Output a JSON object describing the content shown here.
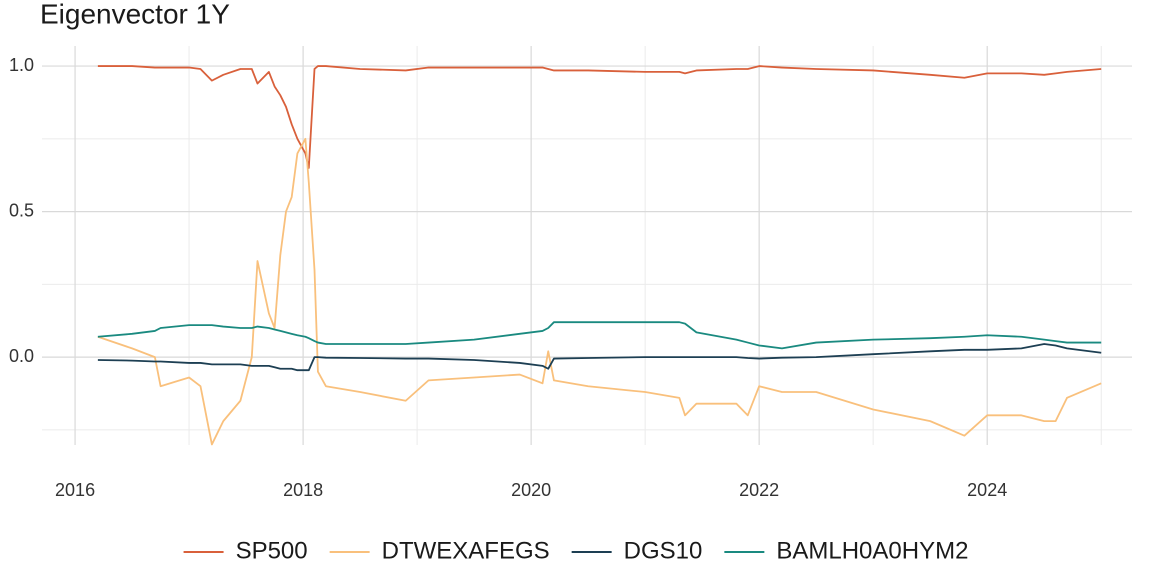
{
  "chart_data": {
    "type": "line",
    "title": "Eigenvector 1Y",
    "x": [
      2016.2,
      2016.5,
      2016.7,
      2016.75,
      2017.0,
      2017.1,
      2017.2,
      2017.3,
      2017.45,
      2017.55,
      2017.6,
      2017.7,
      2017.75,
      2017.8,
      2017.85,
      2017.9,
      2017.95,
      2018.02,
      2018.05,
      2018.1,
      2018.13,
      2018.2,
      2018.5,
      2018.9,
      2019.1,
      2019.5,
      2019.9,
      2020.1,
      2020.15,
      2020.2,
      2020.5,
      2021.0,
      2021.3,
      2021.35,
      2021.45,
      2021.8,
      2021.9,
      2022.0,
      2022.2,
      2022.5,
      2023.0,
      2023.5,
      2023.8,
      2024.0,
      2024.3,
      2024.5,
      2024.6,
      2024.7,
      2025.0
    ],
    "series": [
      {
        "name": "SP500",
        "color": "#d9603b",
        "values": [
          1.0,
          1.0,
          0.995,
          0.995,
          0.995,
          0.99,
          0.95,
          0.97,
          0.99,
          0.99,
          0.94,
          0.98,
          0.93,
          0.9,
          0.86,
          0.8,
          0.75,
          0.7,
          0.65,
          0.99,
          1.0,
          1.0,
          0.99,
          0.985,
          0.995,
          0.995,
          0.995,
          0.995,
          0.99,
          0.985,
          0.985,
          0.98,
          0.98,
          0.975,
          0.985,
          0.99,
          0.99,
          1.0,
          0.995,
          0.99,
          0.985,
          0.97,
          0.96,
          0.975,
          0.975,
          0.97,
          0.975,
          0.98,
          0.99
        ]
      },
      {
        "name": "DTWEXAFEGS",
        "color": "#f9c07c",
        "values": [
          0.07,
          0.03,
          0.0,
          -0.1,
          -0.07,
          -0.1,
          -0.3,
          -0.22,
          -0.15,
          0.0,
          0.33,
          0.15,
          0.1,
          0.35,
          0.5,
          0.55,
          0.7,
          0.75,
          0.6,
          0.3,
          -0.05,
          -0.1,
          -0.12,
          -0.15,
          -0.08,
          -0.07,
          -0.06,
          -0.09,
          0.02,
          -0.08,
          -0.1,
          -0.12,
          -0.14,
          -0.2,
          -0.16,
          -0.16,
          -0.2,
          -0.1,
          -0.12,
          -0.12,
          -0.18,
          -0.22,
          -0.27,
          -0.2,
          -0.2,
          -0.22,
          -0.22,
          -0.14,
          -0.09
        ]
      },
      {
        "name": "DGS10",
        "color": "#1d3f53",
        "values": [
          -0.01,
          -0.012,
          -0.015,
          -0.015,
          -0.02,
          -0.02,
          -0.025,
          -0.025,
          -0.025,
          -0.03,
          -0.03,
          -0.03,
          -0.035,
          -0.04,
          -0.04,
          -0.04,
          -0.045,
          -0.045,
          -0.045,
          0.0,
          0.0,
          -0.002,
          -0.003,
          -0.005,
          -0.005,
          -0.01,
          -0.02,
          -0.03,
          -0.04,
          -0.005,
          -0.003,
          0.0,
          0.0,
          0.0,
          0.0,
          0.0,
          -0.003,
          -0.005,
          -0.002,
          0.0,
          0.01,
          0.02,
          0.025,
          0.025,
          0.03,
          0.045,
          0.04,
          0.03,
          0.015
        ]
      },
      {
        "name": "BAMLH0A0HYM2",
        "color": "#1a8a80",
        "values": [
          0.07,
          0.08,
          0.09,
          0.1,
          0.11,
          0.11,
          0.11,
          0.105,
          0.1,
          0.1,
          0.105,
          0.1,
          0.095,
          0.09,
          0.085,
          0.08,
          0.075,
          0.07,
          0.065,
          0.055,
          0.05,
          0.045,
          0.045,
          0.045,
          0.05,
          0.06,
          0.08,
          0.09,
          0.1,
          0.12,
          0.12,
          0.12,
          0.12,
          0.115,
          0.085,
          0.06,
          0.05,
          0.04,
          0.03,
          0.05,
          0.06,
          0.065,
          0.07,
          0.075,
          0.07,
          0.06,
          0.055,
          0.05,
          0.05
        ]
      }
    ],
    "xlim": [
      2015.71,
      2025.27
    ],
    "xticks": [
      2016,
      2018,
      2020,
      2022,
      2024
    ],
    "xminor": [
      2017,
      2019,
      2021,
      2023,
      2025
    ],
    "ylim": [
      -0.302,
      1.069
    ],
    "yticks": [
      {
        "value": 0,
        "label": "0.0"
      },
      {
        "value": 0.5,
        "label": "0.5"
      },
      {
        "value": 1,
        "label": "1.0"
      }
    ],
    "yminor": [
      -0.25,
      0.25,
      0.75
    ],
    "grid": true,
    "legend": "bottom"
  }
}
